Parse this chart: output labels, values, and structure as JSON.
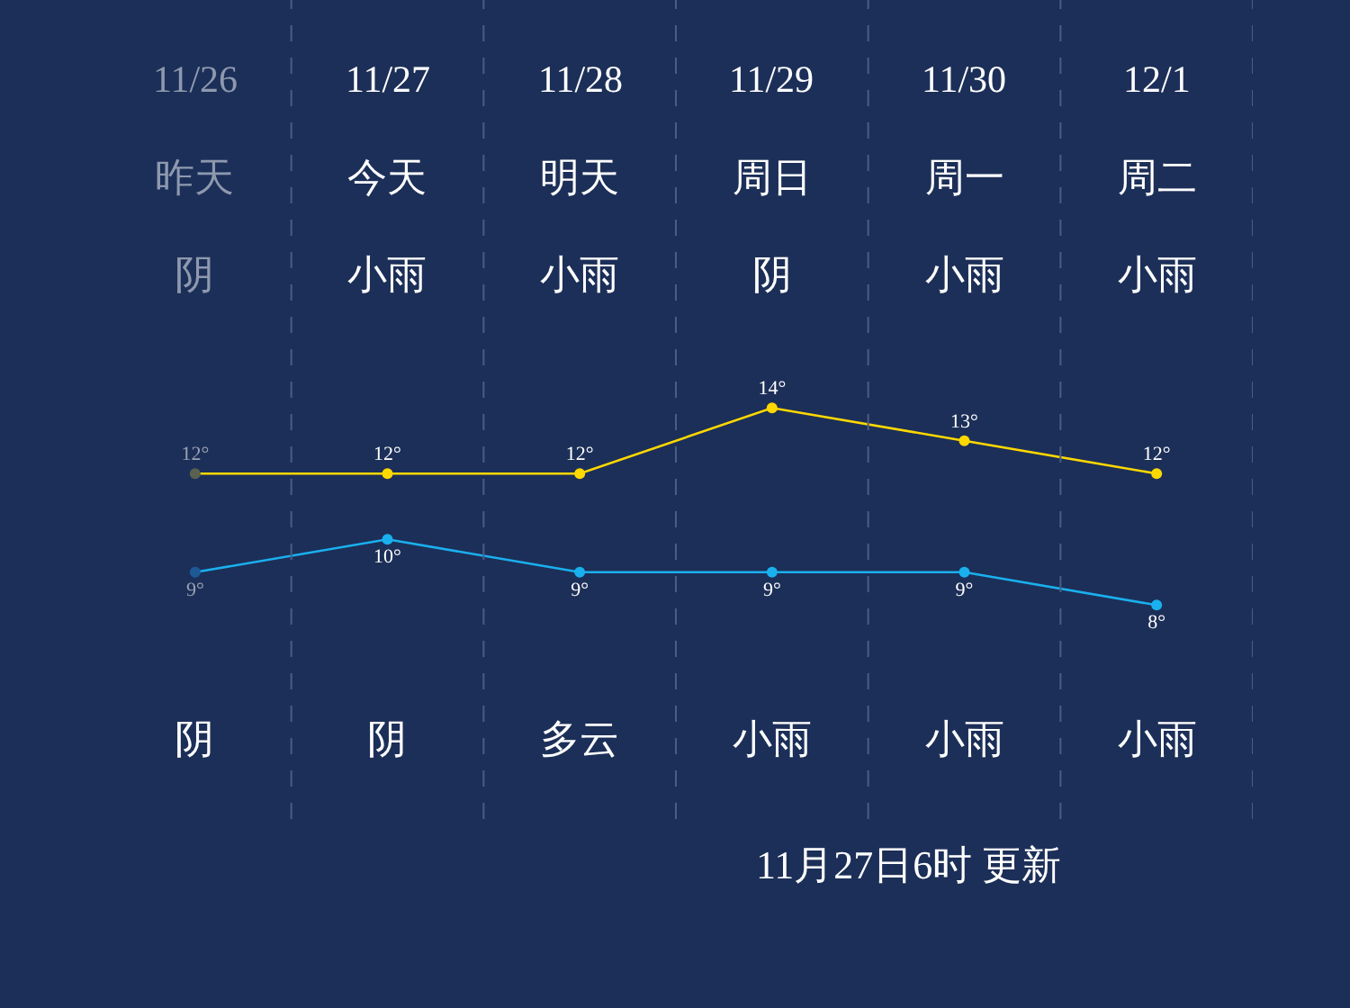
{
  "chart_data": {
    "type": "line",
    "categories": [
      "11/26",
      "11/27",
      "11/28",
      "11/29",
      "11/30",
      "12/1"
    ],
    "series": [
      {
        "color": "#ffd800",
        "colors": [
          "#5a6150",
          "#ffd800",
          "#ffd800",
          "#ffd800",
          "#ffd800",
          "#ffd800"
        ],
        "values": [
          12,
          12,
          12,
          14,
          13,
          12
        ],
        "value_labels": [
          "12°",
          "12°",
          "12°",
          "14°",
          "13°",
          "12°"
        ]
      },
      {
        "color": "#1ab0ee",
        "colors": [
          "#1d5a95",
          "#1ab0ee",
          "#1ab0ee",
          "#1ab0ee",
          "#1ab0ee",
          "#1ab0ee"
        ],
        "values": [
          9,
          10,
          9,
          9,
          9,
          8
        ],
        "value_labels": [
          "9°",
          "10°",
          "9°",
          "9°",
          "9°",
          "8°"
        ]
      }
    ],
    "marker": "circle",
    "grid": "x",
    "tick_labels": false,
    "annotations": [
      "昨天",
      "今天",
      "明天",
      "周日",
      "周一",
      "周二",
      "阴",
      "小雨",
      "小雨",
      "阴",
      "小雨",
      "小雨",
      "阴",
      "阴",
      "多云",
      "小雨",
      "小雨",
      "小雨",
      "11月27日6时 更新"
    ]
  }
}
